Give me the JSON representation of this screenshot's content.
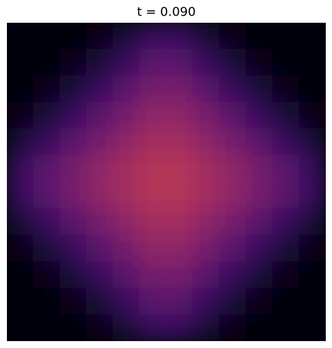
{
  "chart_data": {
    "type": "heatmap",
    "title": "t = 0.090",
    "colormap": "inferno",
    "zlim": [
      0,
      1
    ],
    "values": [
      [
        0.02,
        0.02,
        0.02,
        0.03,
        0.1,
        0.18,
        0.18,
        0.1,
        0.03,
        0.02,
        0.02,
        0.02
      ],
      [
        0.02,
        0.02,
        0.03,
        0.1,
        0.18,
        0.26,
        0.26,
        0.18,
        0.1,
        0.03,
        0.02,
        0.02
      ],
      [
        0.02,
        0.03,
        0.1,
        0.18,
        0.26,
        0.33,
        0.33,
        0.26,
        0.18,
        0.1,
        0.03,
        0.02
      ],
      [
        0.03,
        0.1,
        0.18,
        0.26,
        0.33,
        0.39,
        0.39,
        0.33,
        0.26,
        0.18,
        0.1,
        0.03
      ],
      [
        0.1,
        0.18,
        0.26,
        0.33,
        0.39,
        0.44,
        0.44,
        0.39,
        0.33,
        0.26,
        0.18,
        0.1
      ],
      [
        0.18,
        0.26,
        0.33,
        0.39,
        0.44,
        0.48,
        0.48,
        0.44,
        0.39,
        0.33,
        0.26,
        0.18
      ],
      [
        0.18,
        0.26,
        0.33,
        0.39,
        0.44,
        0.48,
        0.48,
        0.44,
        0.39,
        0.33,
        0.26,
        0.18
      ],
      [
        0.1,
        0.18,
        0.26,
        0.33,
        0.39,
        0.44,
        0.44,
        0.39,
        0.33,
        0.26,
        0.18,
        0.1
      ],
      [
        0.03,
        0.1,
        0.18,
        0.26,
        0.33,
        0.39,
        0.39,
        0.33,
        0.26,
        0.18,
        0.1,
        0.03
      ],
      [
        0.02,
        0.03,
        0.1,
        0.18,
        0.26,
        0.33,
        0.33,
        0.26,
        0.18,
        0.1,
        0.03,
        0.02
      ],
      [
        0.02,
        0.02,
        0.03,
        0.1,
        0.18,
        0.26,
        0.26,
        0.18,
        0.1,
        0.03,
        0.02,
        0.02
      ],
      [
        0.02,
        0.02,
        0.02,
        0.03,
        0.1,
        0.18,
        0.18,
        0.1,
        0.03,
        0.02,
        0.02,
        0.02
      ]
    ]
  }
}
